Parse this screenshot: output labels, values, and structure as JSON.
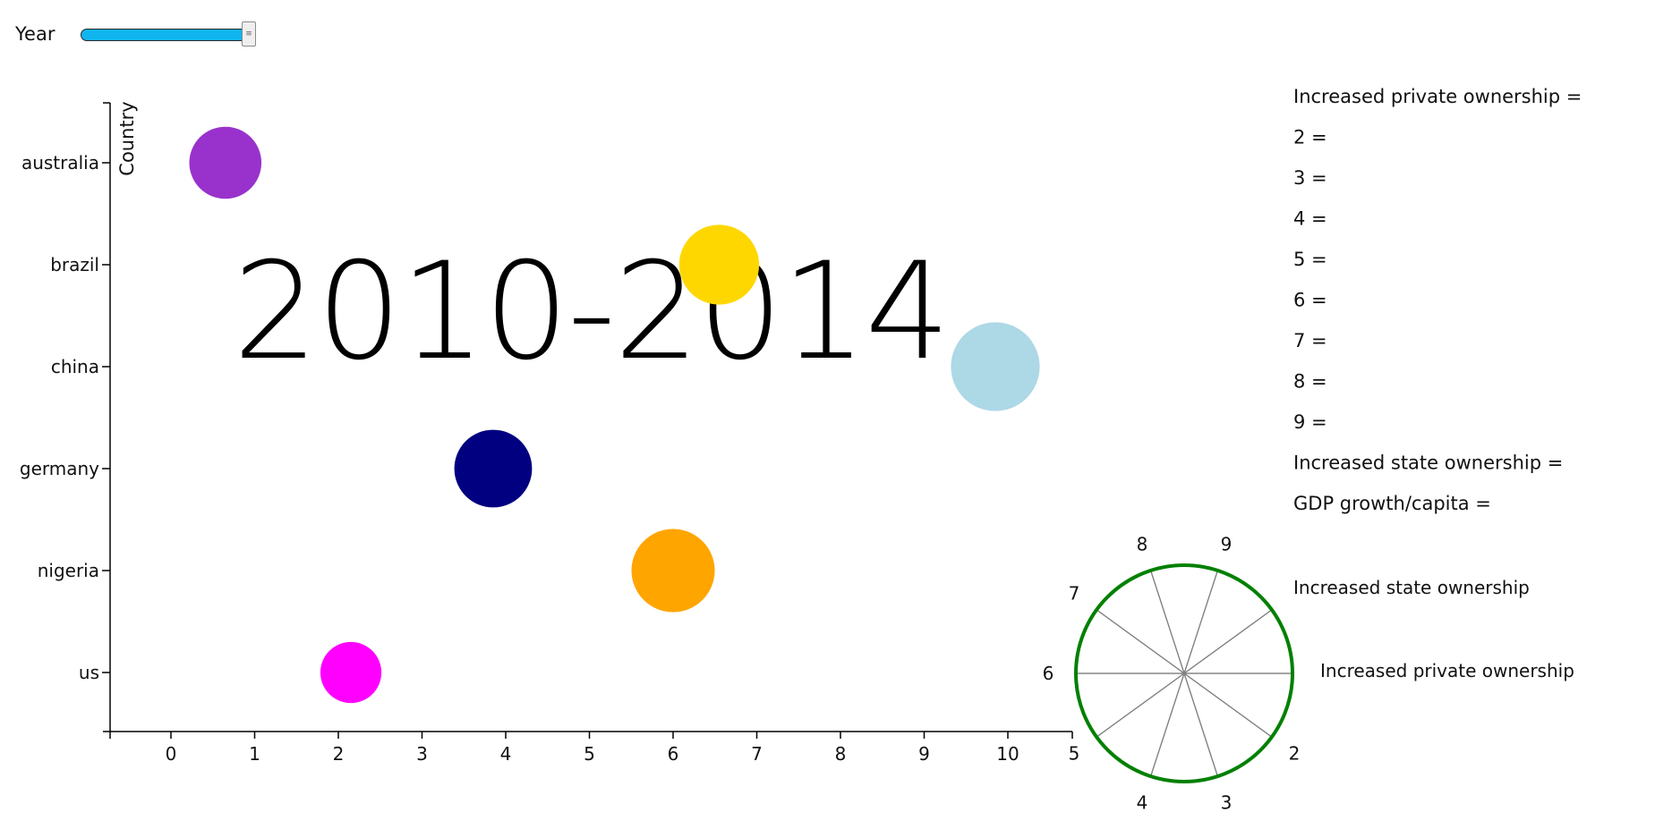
{
  "controls": {
    "year_label": "Year",
    "year_slider": {
      "position_fraction": 1.0
    }
  },
  "chart_data": {
    "type": "scatter",
    "title": "2010-2014",
    "ylabel": "Country",
    "xlabel": "",
    "categories": [
      "australia",
      "brazil",
      "china",
      "germany",
      "nigeria",
      "us"
    ],
    "xlim": [
      -0.75,
      10.8
    ],
    "x_ticks": [
      0,
      1,
      2,
      3,
      4,
      5,
      6,
      7,
      8,
      9,
      10
    ],
    "grid": false,
    "points": [
      {
        "category": "australia",
        "x": 0.65,
        "size_value": 6.5,
        "color": "#9932CC"
      },
      {
        "category": "brazil",
        "x": 6.55,
        "size_value": 7.2,
        "color": "#FFD700"
      },
      {
        "category": "china",
        "x": 9.85,
        "size_value": 8.0,
        "color": "#ADD8E6"
      },
      {
        "category": "germany",
        "x": 3.85,
        "size_value": 7.0,
        "color": "#000080"
      },
      {
        "category": "nigeria",
        "x": 6.0,
        "size_value": 7.5,
        "color": "#FFA500"
      },
      {
        "category": "us",
        "x": 2.15,
        "size_value": 5.5,
        "color": "#FF00FF"
      }
    ]
  },
  "legend": {
    "lines": [
      "Increased private ownership =",
      "2 =",
      "3 =",
      "4 =",
      "5 =",
      "6 =",
      "7 =",
      "8 =",
      "9 =",
      "Increased state ownership =",
      "GDP growth/capita ="
    ]
  },
  "radial": {
    "spoke_labels": [
      "Increased private ownership",
      "2",
      "3",
      "4",
      "5",
      "6",
      "7",
      "8",
      "9",
      "Increased state ownership"
    ],
    "ring_color": "#008000",
    "spoke_color": "#808080"
  }
}
